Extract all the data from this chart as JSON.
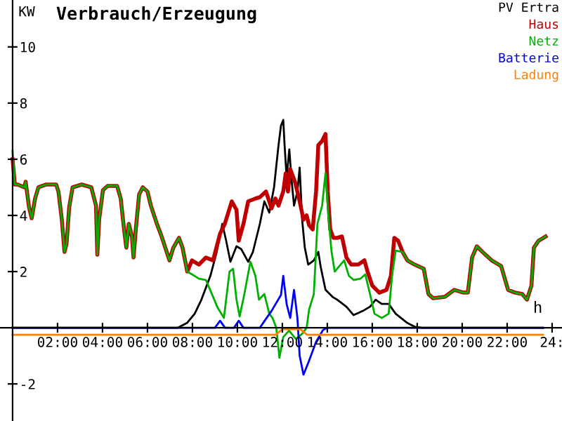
{
  "chart_data": {
    "type": "line",
    "title": "Verbrauch/Erzeugung",
    "xlabel": "h",
    "ylabel": "KW",
    "xlim": [
      -0.56,
      24.44
    ],
    "ylim": [
      -3.32,
      11.67
    ],
    "xticks": [
      {
        "value": 2,
        "label": "02:00"
      },
      {
        "value": 4,
        "label": "04:00"
      },
      {
        "value": 6,
        "label": "06:00"
      },
      {
        "value": 8,
        "label": "08:00"
      },
      {
        "value": 10,
        "label": "10:00"
      },
      {
        "value": 12,
        "label": "12:00"
      },
      {
        "value": 14,
        "label": "14:00"
      },
      {
        "value": 16,
        "label": "16:00"
      },
      {
        "value": 18,
        "label": "18:00"
      },
      {
        "value": 20,
        "label": "20:00"
      },
      {
        "value": 22,
        "label": "22:00"
      },
      {
        "value": 24,
        "label": "24:"
      }
    ],
    "yticks": [
      {
        "value": -2,
        "label": "-2"
      },
      2,
      4,
      6,
      8,
      10
    ],
    "grid": false,
    "legend": "top right",
    "series": [
      {
        "name": "PV Ertra",
        "color": "#000000",
        "x": [
          0,
          7.35,
          7.77,
          8.1,
          8.4,
          8.8,
          9.08,
          9.33,
          9.5,
          9.69,
          9.96,
          10.17,
          10.48,
          10.69,
          11.0,
          11.2,
          11.42,
          11.63,
          11.83,
          11.94,
          12.04,
          12.1,
          12.19,
          12.31,
          12.4,
          12.52,
          12.67,
          12.77,
          12.88,
          13.0,
          13.15,
          13.4,
          13.6,
          13.71,
          13.92,
          14.23,
          14.44,
          14.85,
          15.17,
          15.58,
          15.9,
          16.15,
          16.42,
          16.73,
          17.04,
          17.56,
          17.88,
          18.2,
          23.6
        ],
        "values": [
          0,
          0,
          0.18,
          0.5,
          1.0,
          1.85,
          2.7,
          3.7,
          3.1,
          2.35,
          2.9,
          2.8,
          2.35,
          2.7,
          3.7,
          4.5,
          4.1,
          5.0,
          6.5,
          7.2,
          7.4,
          6.5,
          5.35,
          6.35,
          5.35,
          4.35,
          4.85,
          5.7,
          3.85,
          2.85,
          2.25,
          2.4,
          2.7,
          2.15,
          1.35,
          1.1,
          1.0,
          0.75,
          0.45,
          0.6,
          0.75,
          1.0,
          0.85,
          0.85,
          0.5,
          0.17,
          0.04,
          0,
          0
        ]
      },
      {
        "name": "Haus",
        "color": "#c00000",
        "x": [
          0,
          0.1,
          0.23,
          0.52,
          0.58,
          0.73,
          0.85,
          1.0,
          1.15,
          1.5,
          1.94,
          2.04,
          2.19,
          2.31,
          2.4,
          2.52,
          2.67,
          3.08,
          3.5,
          3.71,
          3.77,
          3.85,
          4.02,
          4.23,
          4.65,
          4.81,
          4.96,
          5.06,
          5.17,
          5.31,
          5.38,
          5.48,
          5.63,
          5.79,
          6.0,
          6.15,
          6.42,
          6.63,
          6.98,
          7.15,
          7.4,
          7.56,
          7.77,
          7.98,
          8.29,
          8.6,
          8.92,
          9.23,
          9.44,
          9.75,
          9.96,
          10.06,
          10.27,
          10.48,
          10.8,
          11.0,
          11.27,
          11.52,
          11.69,
          11.83,
          12.04,
          12.15,
          12.25,
          12.35,
          12.56,
          12.77,
          12.94,
          13.08,
          13.19,
          13.35,
          13.5,
          13.6,
          13.77,
          13.92,
          14.02,
          14.13,
          14.27,
          14.44,
          14.65,
          14.85,
          15.06,
          15.38,
          15.65,
          15.79,
          16.0,
          16.31,
          16.63,
          16.83,
          16.98,
          17.15,
          17.35,
          17.56,
          17.88,
          18.29,
          18.5,
          18.71,
          19.23,
          19.65,
          20.06,
          20.25,
          20.44,
          20.65,
          20.9,
          21.31,
          21.73,
          22.04,
          22.35,
          22.67,
          22.88,
          23.08,
          23.19,
          23.4,
          23.71
        ],
        "values": [
          6.0,
          5.1,
          5.1,
          5.0,
          5.2,
          4.3,
          3.9,
          4.6,
          5.0,
          5.1,
          5.1,
          4.85,
          3.85,
          2.7,
          3.0,
          4.3,
          5.0,
          5.1,
          5.0,
          4.35,
          2.6,
          3.85,
          4.9,
          5.05,
          5.05,
          4.6,
          3.5,
          2.85,
          3.7,
          3.25,
          2.5,
          3.5,
          4.75,
          5.0,
          4.85,
          4.35,
          3.7,
          3.25,
          2.4,
          2.85,
          3.2,
          2.85,
          2.0,
          2.4,
          2.25,
          2.5,
          2.4,
          3.35,
          3.7,
          4.5,
          4.2,
          3.1,
          3.7,
          4.5,
          4.6,
          4.65,
          4.85,
          4.25,
          4.6,
          4.35,
          4.85,
          5.5,
          4.85,
          5.65,
          5.2,
          4.5,
          3.85,
          4.0,
          3.65,
          3.5,
          4.85,
          6.5,
          6.65,
          6.9,
          4.85,
          3.5,
          3.2,
          3.2,
          3.25,
          2.5,
          2.25,
          2.25,
          2.4,
          2.0,
          1.5,
          1.25,
          1.35,
          1.85,
          3.2,
          3.1,
          2.7,
          2.4,
          2.25,
          2.1,
          1.2,
          1.05,
          1.1,
          1.35,
          1.25,
          1.25,
          2.5,
          2.9,
          2.7,
          2.4,
          2.2,
          1.35,
          1.25,
          1.2,
          1.0,
          1.5,
          2.85,
          3.1,
          3.25
        ]
      },
      {
        "name": "Netz",
        "color": "#00b000",
        "x": [
          0,
          0.1,
          0.23,
          0.52,
          0.58,
          0.73,
          0.85,
          1.0,
          1.15,
          1.5,
          1.94,
          2.04,
          2.19,
          2.31,
          2.4,
          2.52,
          2.67,
          3.08,
          3.5,
          3.71,
          3.77,
          3.85,
          4.02,
          4.23,
          4.65,
          4.81,
          4.96,
          5.06,
          5.17,
          5.31,
          5.38,
          5.48,
          5.63,
          5.79,
          6.0,
          6.15,
          6.42,
          6.63,
          6.98,
          7.15,
          7.4,
          7.56,
          7.77,
          7.98,
          8.29,
          8.6,
          8.92,
          9.13,
          9.4,
          9.65,
          9.81,
          9.96,
          10.1,
          10.31,
          10.58,
          10.8,
          10.96,
          11.2,
          11.42,
          11.56,
          11.73,
          11.87,
          12.04,
          12.3,
          12.6,
          12.9,
          13.08,
          13.19,
          13.4,
          13.56,
          13.77,
          13.92,
          14.06,
          14.19,
          14.33,
          14.54,
          14.75,
          14.96,
          15.17,
          15.48,
          15.69,
          15.9,
          16.1,
          16.42,
          16.73,
          16.88,
          17.04,
          17.35,
          17.56,
          17.88,
          18.29,
          18.5,
          18.71,
          19.23,
          19.65,
          20.06,
          20.25,
          20.44,
          20.65,
          20.9,
          21.31,
          21.73,
          22.04,
          22.35,
          22.67,
          22.88,
          23.08,
          23.19,
          23.4,
          23.71
        ],
        "values": [
          6.3,
          5.1,
          5.1,
          5.0,
          5.2,
          4.3,
          3.9,
          4.6,
          5.0,
          5.1,
          5.1,
          4.85,
          3.85,
          2.7,
          3.0,
          4.3,
          5.0,
          5.1,
          5.0,
          4.35,
          2.6,
          3.85,
          4.9,
          5.05,
          5.05,
          4.6,
          3.5,
          2.85,
          3.7,
          3.25,
          2.5,
          3.5,
          4.75,
          5.0,
          4.85,
          4.35,
          3.7,
          3.25,
          2.4,
          2.85,
          3.2,
          2.85,
          2.0,
          1.9,
          1.75,
          1.7,
          1.1,
          0.7,
          0.35,
          2.0,
          2.1,
          1.0,
          0.4,
          1.2,
          2.35,
          1.85,
          1.0,
          1.2,
          0.5,
          0.35,
          0.0,
          -1.07,
          -0.33,
          -0.1,
          -0.4,
          -0.2,
          0.0,
          0.65,
          1.2,
          3.7,
          4.35,
          5.5,
          3.85,
          2.7,
          2.0,
          2.2,
          2.4,
          1.85,
          1.7,
          1.75,
          1.9,
          1.2,
          0.5,
          0.35,
          0.5,
          1.85,
          2.75,
          2.7,
          2.4,
          2.25,
          2.1,
          1.2,
          1.05,
          1.1,
          1.35,
          1.25,
          1.25,
          2.5,
          2.9,
          2.7,
          2.4,
          2.2,
          1.35,
          1.25,
          1.2,
          1.0,
          1.5,
          2.85,
          3.1,
          3.25
        ]
      },
      {
        "name": "Batterie",
        "color": "#0000ff",
        "x": [
          0,
          9.0,
          9.23,
          9.45,
          9.85,
          10.06,
          10.27,
          11.0,
          11.3,
          11.52,
          11.94,
          12.04,
          12.19,
          12.35,
          12.52,
          12.67,
          12.77,
          12.94,
          13.19,
          13.5,
          13.81,
          14.0,
          23.6
        ],
        "values": [
          0,
          0,
          0.25,
          0,
          0,
          0.25,
          0,
          0,
          0.35,
          0.6,
          1.17,
          1.85,
          0.85,
          0.35,
          1.35,
          0.35,
          -1.0,
          -1.67,
          -1.17,
          -0.5,
          -0.08,
          0,
          0
        ]
      },
      {
        "name": "Ladung",
        "color": "#ff8000",
        "x": [
          0,
          11.7,
          12.0,
          12.8,
          13.1,
          23.6
        ],
        "values": [
          -0.25,
          -0.25,
          -0.05,
          -0.05,
          -0.25,
          -0.25
        ]
      }
    ]
  }
}
